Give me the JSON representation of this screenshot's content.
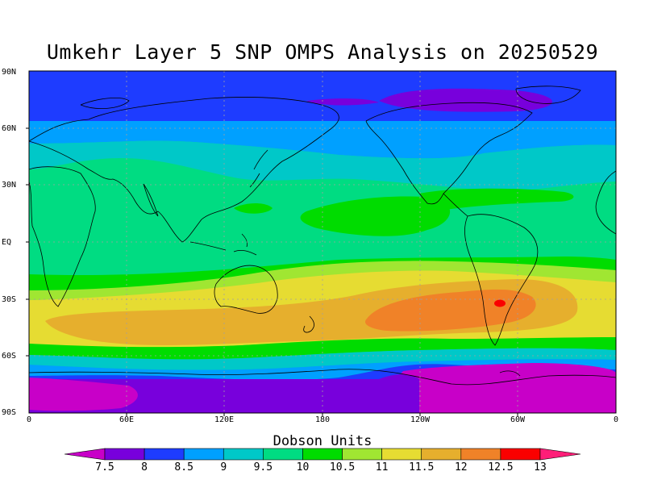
{
  "title": "Umkehr Layer 5 SNP OMPS Analysis on 20250529",
  "lat_labels": [
    "90N",
    "60N",
    "30N",
    "EQ",
    "30S",
    "60S",
    "90S"
  ],
  "lon_labels": [
    "0",
    "60E",
    "120E",
    "180",
    "120W",
    "60W",
    "0"
  ],
  "colorbar": {
    "title": "Dobson Units",
    "levels": [
      "7.5",
      "8",
      "8.5",
      "9",
      "9.5",
      "10",
      "10.5",
      "11",
      "11.5",
      "12",
      "12.5",
      "13"
    ],
    "colors": [
      "#c800c8",
      "#7800dc",
      "#1e3cff",
      "#00a0ff",
      "#00c8c8",
      "#00dc82",
      "#00dc00",
      "#a0e632",
      "#e6dc32",
      "#e6af2d",
      "#f08228",
      "#fa0000",
      "#ff1e78"
    ]
  },
  "chart_data": {
    "type": "heatmap",
    "title": "Umkehr Layer 5 SNP OMPS Analysis on 20250529",
    "colorbar_label": "Dobson Units",
    "xlim": [
      0,
      360
    ],
    "ylim": [
      -90,
      90
    ],
    "x_ticks": [
      "0",
      "60E",
      "120E",
      "180",
      "120W",
      "60W",
      "0"
    ],
    "y_ticks": [
      "90N",
      "60N",
      "30N",
      "EQ",
      "30S",
      "60S",
      "90S"
    ],
    "grid": true,
    "zonal_bands": [
      {
        "lat_range": [
          65,
          90
        ],
        "value_range": [
          8,
          8.5
        ]
      },
      {
        "lat_range": [
          50,
          65
        ],
        "value_range": [
          9,
          9.5
        ]
      },
      {
        "lat_range": [
          30,
          50
        ],
        "value_range": [
          9.5,
          10
        ]
      },
      {
        "lat_range": [
          -20,
          30
        ],
        "value_range": [
          10,
          10.5
        ]
      },
      {
        "lat_range": [
          -30,
          -20
        ],
        "value_range": [
          10.5,
          11
        ]
      },
      {
        "lat_range": [
          -40,
          -30
        ],
        "value_range": [
          11,
          11.5
        ]
      },
      {
        "lat_range": [
          -52,
          -40
        ],
        "value_range": [
          11.5,
          12
        ]
      },
      {
        "lat_range": [
          -62,
          -52
        ],
        "value_range": [
          10,
          11
        ]
      },
      {
        "lat_range": [
          -75,
          -62
        ],
        "value_range": [
          8.5,
          9.5
        ]
      },
      {
        "lat_range": [
          -90,
          -75
        ],
        "value_range": [
          7.5,
          8
        ]
      }
    ],
    "maxima": [
      {
        "lon": 290,
        "lat": -35,
        "value_range": [
          12.5,
          13
        ]
      },
      {
        "lon": 255,
        "lat": -42,
        "value_range": [
          12,
          12.5
        ]
      }
    ],
    "minima": [
      {
        "lon": 240,
        "lat": 75,
        "value_range": [
          7.5,
          8
        ]
      },
      {
        "lon": 20,
        "lat": -85,
        "value_range": [
          7.5,
          8
        ]
      }
    ]
  }
}
